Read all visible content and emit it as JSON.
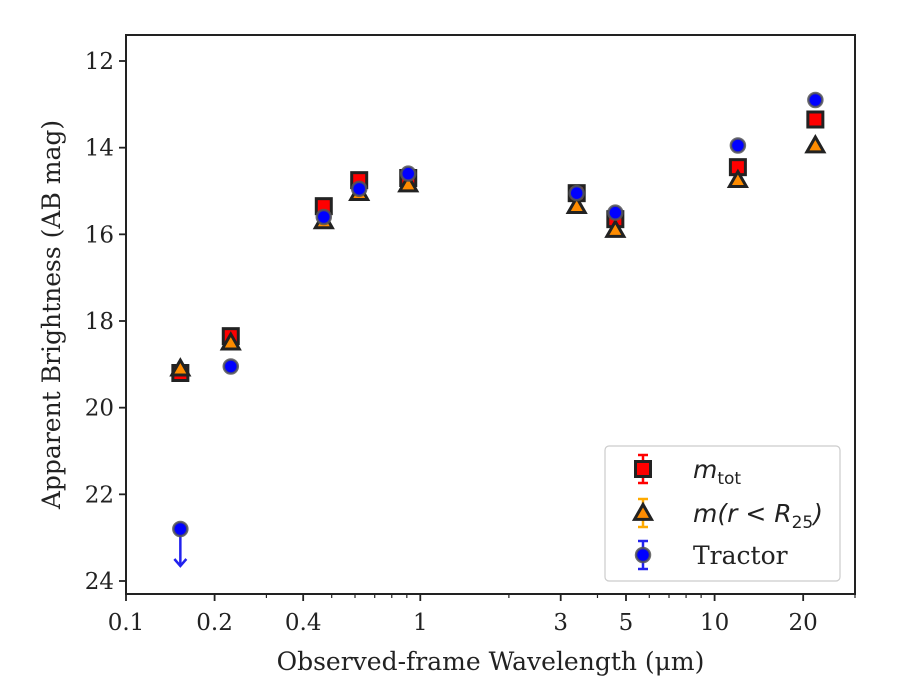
{
  "chart_data": {
    "type": "scatter",
    "xlabel": "Observed-frame Wavelength (μm)",
    "ylabel": "Apparent Brightness (AB mag)",
    "xscale": "log",
    "xlim": [
      0.1,
      30
    ],
    "ylim": [
      24.3,
      11.4
    ],
    "y_inverted": true,
    "xticks": [
      0.1,
      0.2,
      0.4,
      1,
      3,
      5,
      10,
      20
    ],
    "xtick_labels": [
      "0.1",
      "0.2",
      "0.4",
      "1",
      "3",
      "5",
      "10",
      "20"
    ],
    "yticks": [
      12,
      14,
      16,
      18,
      20,
      22,
      24
    ],
    "ytick_labels": [
      "12",
      "14",
      "16",
      "18",
      "20",
      "22",
      "24"
    ],
    "grid": false,
    "legend_position": "bottom-right",
    "series": [
      {
        "key": "mtot",
        "name": "m_tot",
        "legend_base": "m",
        "legend_sub": "tot",
        "legend_suffix": "",
        "marker": "square",
        "color": "#ff0000",
        "edge": "#222222",
        "points": [
          {
            "x": 0.153,
            "y": 19.2
          },
          {
            "x": 0.227,
            "y": 18.35
          },
          {
            "x": 0.47,
            "y": 15.35
          },
          {
            "x": 0.62,
            "y": 14.75
          },
          {
            "x": 0.91,
            "y": 14.7
          },
          {
            "x": 3.4,
            "y": 15.05
          },
          {
            "x": 4.6,
            "y": 15.65
          },
          {
            "x": 12.0,
            "y": 14.45
          },
          {
            "x": 22.0,
            "y": 13.35
          }
        ]
      },
      {
        "key": "mr25",
        "name": "m(r < R_25)",
        "legend_base": "m(r < R",
        "legend_sub": "25",
        "legend_suffix": ")",
        "marker": "triangle",
        "color": "#ff8c00",
        "edge": "#222222",
        "errcolor": "#ffaa00",
        "points": [
          {
            "x": 0.153,
            "y": 19.1
          },
          {
            "x": 0.227,
            "y": 18.5
          },
          {
            "x": 0.47,
            "y": 15.7
          },
          {
            "x": 0.62,
            "y": 15.05
          },
          {
            "x": 0.91,
            "y": 14.85
          },
          {
            "x": 3.4,
            "y": 15.35
          },
          {
            "x": 4.6,
            "y": 15.9
          },
          {
            "x": 12.0,
            "y": 14.75
          },
          {
            "x": 22.0,
            "y": 13.95
          }
        ]
      },
      {
        "key": "tractor",
        "name": "Tractor",
        "legend_base": "Tractor",
        "legend_sub": "",
        "legend_suffix": "",
        "marker": "circle",
        "color": "#0000ff",
        "edge": "#555555",
        "points": [
          {
            "x": 0.153,
            "y": 22.8,
            "upper_limit": true
          },
          {
            "x": 0.227,
            "y": 19.05
          },
          {
            "x": 0.47,
            "y": 15.6
          },
          {
            "x": 0.62,
            "y": 14.95
          },
          {
            "x": 0.91,
            "y": 14.6
          },
          {
            "x": 3.4,
            "y": 15.05
          },
          {
            "x": 4.6,
            "y": 15.5
          },
          {
            "x": 12.0,
            "y": 13.95
          },
          {
            "x": 22.0,
            "y": 12.9
          }
        ]
      }
    ]
  }
}
